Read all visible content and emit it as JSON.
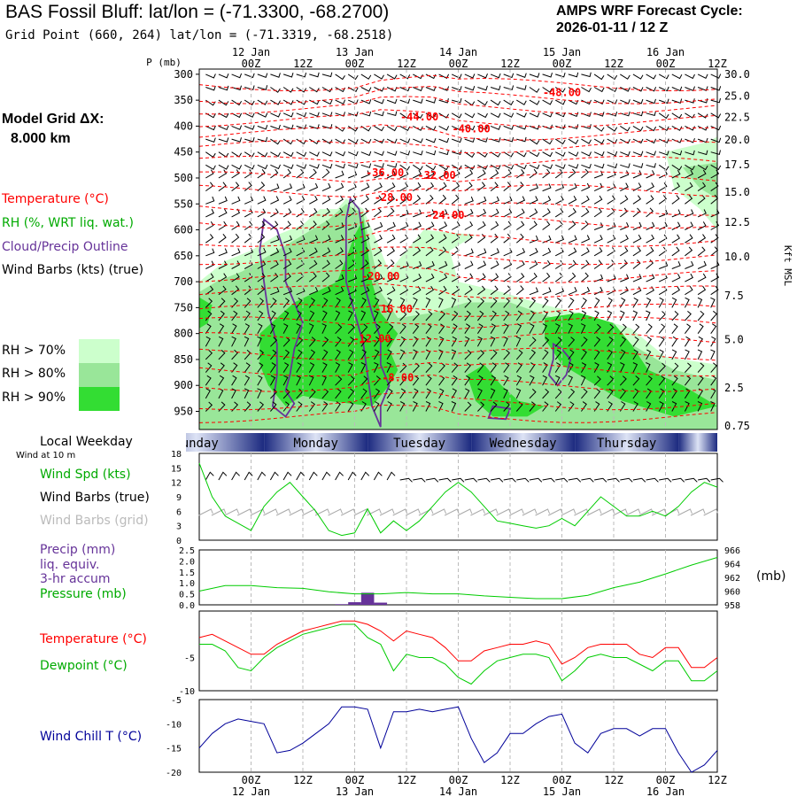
{
  "header": {
    "title": "BAS Fossil Bluff:  lat/lon = (-71.3300, -68.2700)",
    "subtitle": "Grid Point (660, 264) lat/lon = (-71.3319, -68.2518)",
    "cycle_line1": "AMPS WRF Forecast Cycle:",
    "cycle_line2": "2026-01-11 / 12  Z"
  },
  "left_panel": {
    "grid_label": "Model Grid ΔX:",
    "grid_value": "8.000 km",
    "temp_label": "Temperature (°C)",
    "rh_label": "RH (%, WRT liq. wat.)",
    "cloud_label": "Cloud/Precip Outline",
    "barbs_label": "Wind Barbs (kts) (true)",
    "rh70": "RH > 70%",
    "rh80": "RH > 80%",
    "rh90": "RH > 90%",
    "weekday_label": "Local Weekday",
    "wind10m_label": "Wind at 10 m"
  },
  "panel_labels": {
    "wspd": "Wind Spd (kts)",
    "barbs_true": "Wind Barbs (true)",
    "barbs_grid": "Wind Barbs (grid)",
    "precip1": "Precip (mm)",
    "precip2": "liq. equiv.",
    "precip3": "3-hr accum",
    "pressure": "Pressure (mb)",
    "temperature": "Temperature (°C)",
    "dewpoint": "Dewpoint (°C)",
    "windchill": "Wind Chill T (°C)",
    "p_axis": "P (mb)",
    "kft_axis": "Kft MSL",
    "mb_unit": "(mb)"
  },
  "colors": {
    "temperature": "#ff0000",
    "dewpoint": "#00cc00",
    "cloud_outline": "#663399",
    "windchill": "#000099",
    "rh70": "#ccffcc",
    "rh80": "#99e699",
    "rh90": "#33dd33",
    "barb_grid": "#aaaaaa"
  },
  "chart_data": {
    "type": "line",
    "time_axis": {
      "tick_labels": [
        "00Z",
        "12Z",
        "00Z",
        "12Z",
        "00Z",
        "12Z",
        "00Z",
        "12Z",
        "00Z",
        "12Z"
      ],
      "tick_hours": [
        12,
        24,
        36,
        48,
        60,
        72,
        84,
        96,
        108,
        120
      ],
      "date_labels": [
        "12 Jan",
        "13 Jan",
        "14 Jan",
        "15 Jan",
        "16 Jan"
      ],
      "date_hours": [
        12,
        36,
        60,
        84,
        108
      ],
      "range_hours": [
        0,
        120
      ]
    },
    "weekdays": [
      {
        "label": "Sunday",
        "start": 0,
        "end": 15
      },
      {
        "label": "Monday",
        "start": 15,
        "end": 39
      },
      {
        "label": "Tuesday",
        "start": 39,
        "end": 63
      },
      {
        "label": "Wednesday",
        "start": 63,
        "end": 87
      },
      {
        "label": "Thursday",
        "start": 87,
        "end": 111
      },
      {
        "label": "",
        "start": 111,
        "end": 120
      }
    ],
    "cross_section": {
      "pressure_ticks": [
        300,
        350,
        400,
        450,
        500,
        550,
        600,
        650,
        700,
        750,
        800,
        850,
        900,
        950
      ],
      "height_ticks_kft": [
        "30.0",
        "25.0",
        "22.5",
        "20.0",
        "17.5",
        "15.0",
        "12.5",
        "10.0",
        "7.5",
        "5.0",
        "2.5",
        "0.75"
      ],
      "height_tick_pressure": [
        300,
        342,
        383,
        427,
        474,
        527,
        585,
        652,
        727,
        812,
        905,
        978
      ],
      "isotherm_labels": [
        {
          "text": "-48.00",
          "t": 84,
          "p": 335
        },
        {
          "text": "-44.00",
          "t": 51,
          "p": 382
        },
        {
          "text": "-40.00",
          "t": 63,
          "p": 405
        },
        {
          "text": "-36.00",
          "t": 43,
          "p": 490
        },
        {
          "text": "-32.00",
          "t": 55,
          "p": 495
        },
        {
          "text": "-28.00",
          "t": 45,
          "p": 538
        },
        {
          "text": "-24.00",
          "t": 57,
          "p": 572
        },
        {
          "text": "-20.00",
          "t": 42,
          "p": 690
        },
        {
          "text": "-16.00",
          "t": 45,
          "p": 753
        },
        {
          "text": "-12.00",
          "t": 40,
          "p": 810
        },
        {
          "text": "-8.00",
          "t": 46,
          "p": 885
        }
      ]
    },
    "wind_speed_kts": {
      "ylim": [
        0,
        18
      ],
      "yticks": [
        0,
        3,
        6,
        9,
        12,
        15,
        18
      ],
      "t": [
        0,
        3,
        6,
        9,
        12,
        15,
        18,
        21,
        24,
        27,
        30,
        33,
        36,
        39,
        42,
        45,
        48,
        51,
        54,
        57,
        60,
        63,
        66,
        69,
        72,
        75,
        78,
        81,
        84,
        87,
        90,
        93,
        96,
        99,
        102,
        105,
        108,
        111,
        114,
        117,
        120
      ],
      "values": [
        16,
        9,
        5,
        3.5,
        2,
        7,
        10,
        12,
        9,
        6,
        2,
        1,
        1.5,
        6.5,
        1.5,
        4,
        2,
        4,
        7,
        10,
        12,
        10,
        7,
        4,
        3.5,
        3,
        2.5,
        3,
        4.5,
        3,
        6,
        9,
        7,
        5,
        5,
        6,
        5,
        7,
        10,
        12,
        11
      ]
    },
    "pressure_mb": {
      "ylim": [
        958,
        966
      ],
      "yticks": [
        958,
        960,
        962,
        964,
        966
      ],
      "t": [
        0,
        6,
        12,
        18,
        24,
        30,
        36,
        42,
        48,
        54,
        60,
        66,
        72,
        78,
        84,
        90,
        96,
        102,
        108,
        114,
        120
      ],
      "values": [
        960.0,
        960.8,
        960.8,
        960.5,
        960.4,
        959.9,
        959.6,
        959.6,
        959.8,
        959.6,
        959.6,
        959.3,
        959.1,
        958.9,
        958.9,
        959.4,
        960.5,
        961.3,
        962.5,
        963.8,
        964.9
      ]
    },
    "precip_mm": {
      "ylim": [
        0,
        2.5
      ],
      "yticks": [
        0.0,
        0.5,
        1.0,
        1.5,
        2.0,
        2.5
      ],
      "bars": [
        {
          "t_start": 31.5,
          "t_end": 34.5,
          "value": 0.03
        },
        {
          "t_start": 34.5,
          "t_end": 37.5,
          "value": 0.12
        },
        {
          "t_start": 37.5,
          "t_end": 40.5,
          "value": 0.55
        },
        {
          "t_start": 40.5,
          "t_end": 43.5,
          "value": 0.1
        }
      ]
    },
    "temperature_c": {
      "ylim": [
        -10,
        2
      ],
      "yticks": [
        -10,
        -5
      ],
      "t": [
        0,
        3,
        6,
        9,
        12,
        15,
        18,
        21,
        24,
        27,
        30,
        33,
        36,
        39,
        42,
        45,
        48,
        51,
        54,
        57,
        60,
        63,
        66,
        69,
        72,
        75,
        78,
        81,
        84,
        87,
        90,
        93,
        96,
        99,
        102,
        105,
        108,
        111,
        114,
        117,
        120
      ],
      "values": [
        -2,
        -1.5,
        -2.5,
        -3.5,
        -4.5,
        -4.5,
        -3,
        -2,
        -1,
        -0.5,
        0,
        0.5,
        0.5,
        0,
        -1,
        -2.5,
        -1,
        -1.5,
        -2,
        -3.5,
        -5.5,
        -5.5,
        -4,
        -3.5,
        -3,
        -3,
        -2.5,
        -3,
        -6,
        -5,
        -3.5,
        -3,
        -3,
        -3,
        -4.5,
        -5,
        -3.5,
        -3.5,
        -6.5,
        -6.5,
        -5
      ]
    },
    "dewpoint_c": {
      "t": [
        0,
        3,
        6,
        9,
        12,
        15,
        18,
        21,
        24,
        27,
        30,
        33,
        36,
        39,
        42,
        45,
        48,
        51,
        54,
        57,
        60,
        63,
        66,
        69,
        72,
        75,
        78,
        81,
        84,
        87,
        90,
        93,
        96,
        99,
        102,
        105,
        108,
        111,
        114,
        117,
        120
      ],
      "values": [
        -3,
        -3,
        -4,
        -6.5,
        -7,
        -5,
        -3.5,
        -2.5,
        -1.5,
        -1,
        -0.5,
        0,
        0,
        -2,
        -3,
        -7,
        -4.5,
        -5,
        -5,
        -6,
        -8,
        -9,
        -7,
        -5.5,
        -5,
        -4.5,
        -4.5,
        -5,
        -8.5,
        -7,
        -5,
        -4.5,
        -5,
        -5,
        -6,
        -7,
        -5.5,
        -5.5,
        -8.5,
        -8.5,
        -7
      ]
    },
    "wind_chill_c": {
      "ylim": [
        -20,
        -5
      ],
      "yticks": [
        -20,
        -15,
        -10,
        -5
      ],
      "t": [
        0,
        3,
        6,
        9,
        12,
        15,
        18,
        21,
        24,
        27,
        30,
        33,
        36,
        39,
        42,
        45,
        48,
        51,
        54,
        57,
        60,
        63,
        66,
        69,
        72,
        75,
        78,
        81,
        84,
        87,
        90,
        93,
        96,
        99,
        102,
        105,
        108,
        111,
        114,
        117,
        120
      ],
      "values": [
        -15,
        -12,
        -10,
        -9,
        -9.5,
        -10,
        -16,
        -15.5,
        -14,
        -12,
        -10,
        -6.5,
        -6.5,
        -7,
        -15,
        -7.5,
        -7.5,
        -7,
        -7.5,
        -7,
        -6.5,
        -13,
        -18,
        -16,
        -12,
        -12,
        -10,
        -8.5,
        -8,
        -14,
        -16,
        -12,
        -11,
        -11,
        -12.5,
        -11,
        -11,
        -16,
        -20,
        -18.5,
        -15.5
      ]
    }
  }
}
